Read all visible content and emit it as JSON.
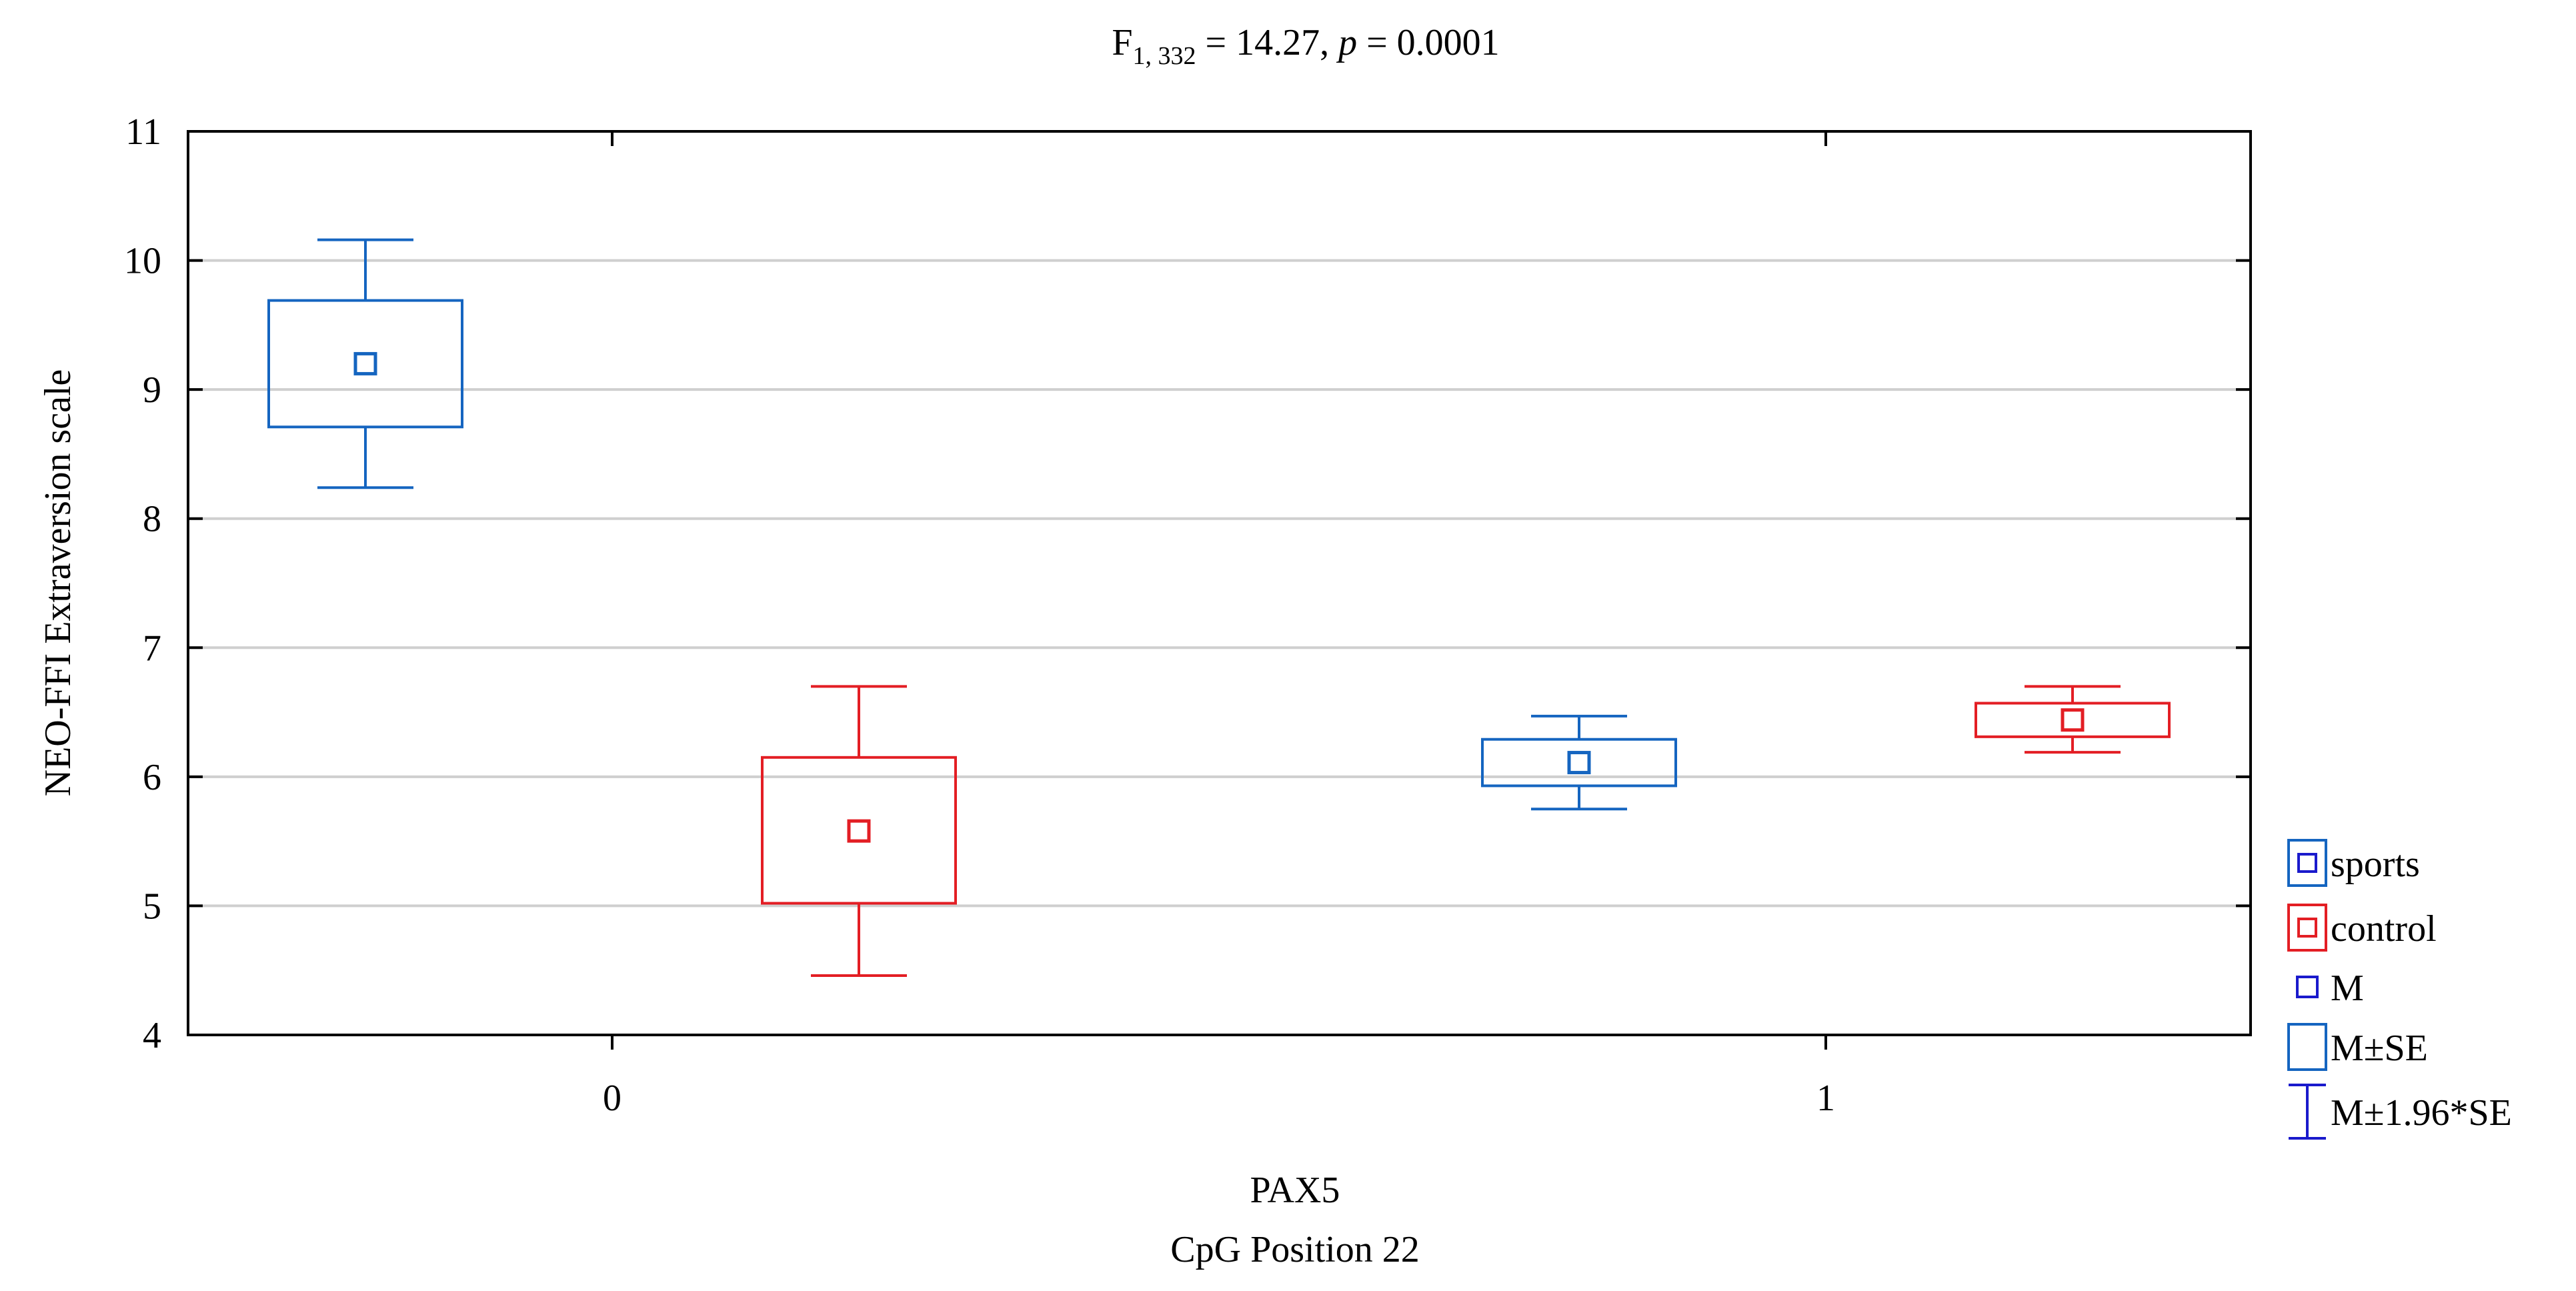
{
  "chart_data": {
    "type": "box",
    "title_main": "F",
    "title_sub": "1, 332",
    "title_eq": " = 14.27, ",
    "title_p": "p",
    "title_rest": " = 0.0001",
    "xlabel_line1": "PAX5",
    "xlabel_line2": "CpG Position 22",
    "ylabel": "NEO-FFI Extraversion scale",
    "ylim": [
      4,
      11
    ],
    "yticks": [
      4,
      5,
      6,
      7,
      8,
      9,
      10,
      11
    ],
    "categories": [
      "0",
      "1"
    ],
    "grid": true,
    "legend_position": "right",
    "series": [
      {
        "name": "sports",
        "color": "#1565c0",
        "points": [
          {
            "category": "0",
            "mean": 9.2,
            "se_low": 8.71,
            "se_high": 9.69,
            "ci_low": 8.24,
            "ci_high": 10.16
          },
          {
            "category": "1",
            "mean": 6.11,
            "se_low": 5.93,
            "se_high": 6.29,
            "ci_low": 5.75,
            "ci_high": 6.47
          }
        ]
      },
      {
        "name": "control",
        "color": "#e31e24",
        "points": [
          {
            "category": "0",
            "mean": 5.58,
            "se_low": 5.02,
            "se_high": 6.15,
            "ci_low": 4.46,
            "ci_high": 6.7
          },
          {
            "category": "1",
            "mean": 6.44,
            "se_low": 6.31,
            "se_high": 6.57,
            "ci_low": 6.19,
            "ci_high": 6.7
          }
        ]
      }
    ],
    "legend_stats": [
      {
        "label": "M",
        "kind": "mean"
      },
      {
        "label": "M±SE",
        "kind": "box"
      },
      {
        "label": "M±1.96*SE",
        "kind": "whisker"
      }
    ],
    "colors": {
      "sports": "#1565c0",
      "control": "#e31e24",
      "stat_mean": "#1a1acc",
      "stat_box": "#1565c0",
      "stat_whisker": "#1a1acc",
      "gridline": "#cfcfcf",
      "axis": "#000000"
    }
  }
}
